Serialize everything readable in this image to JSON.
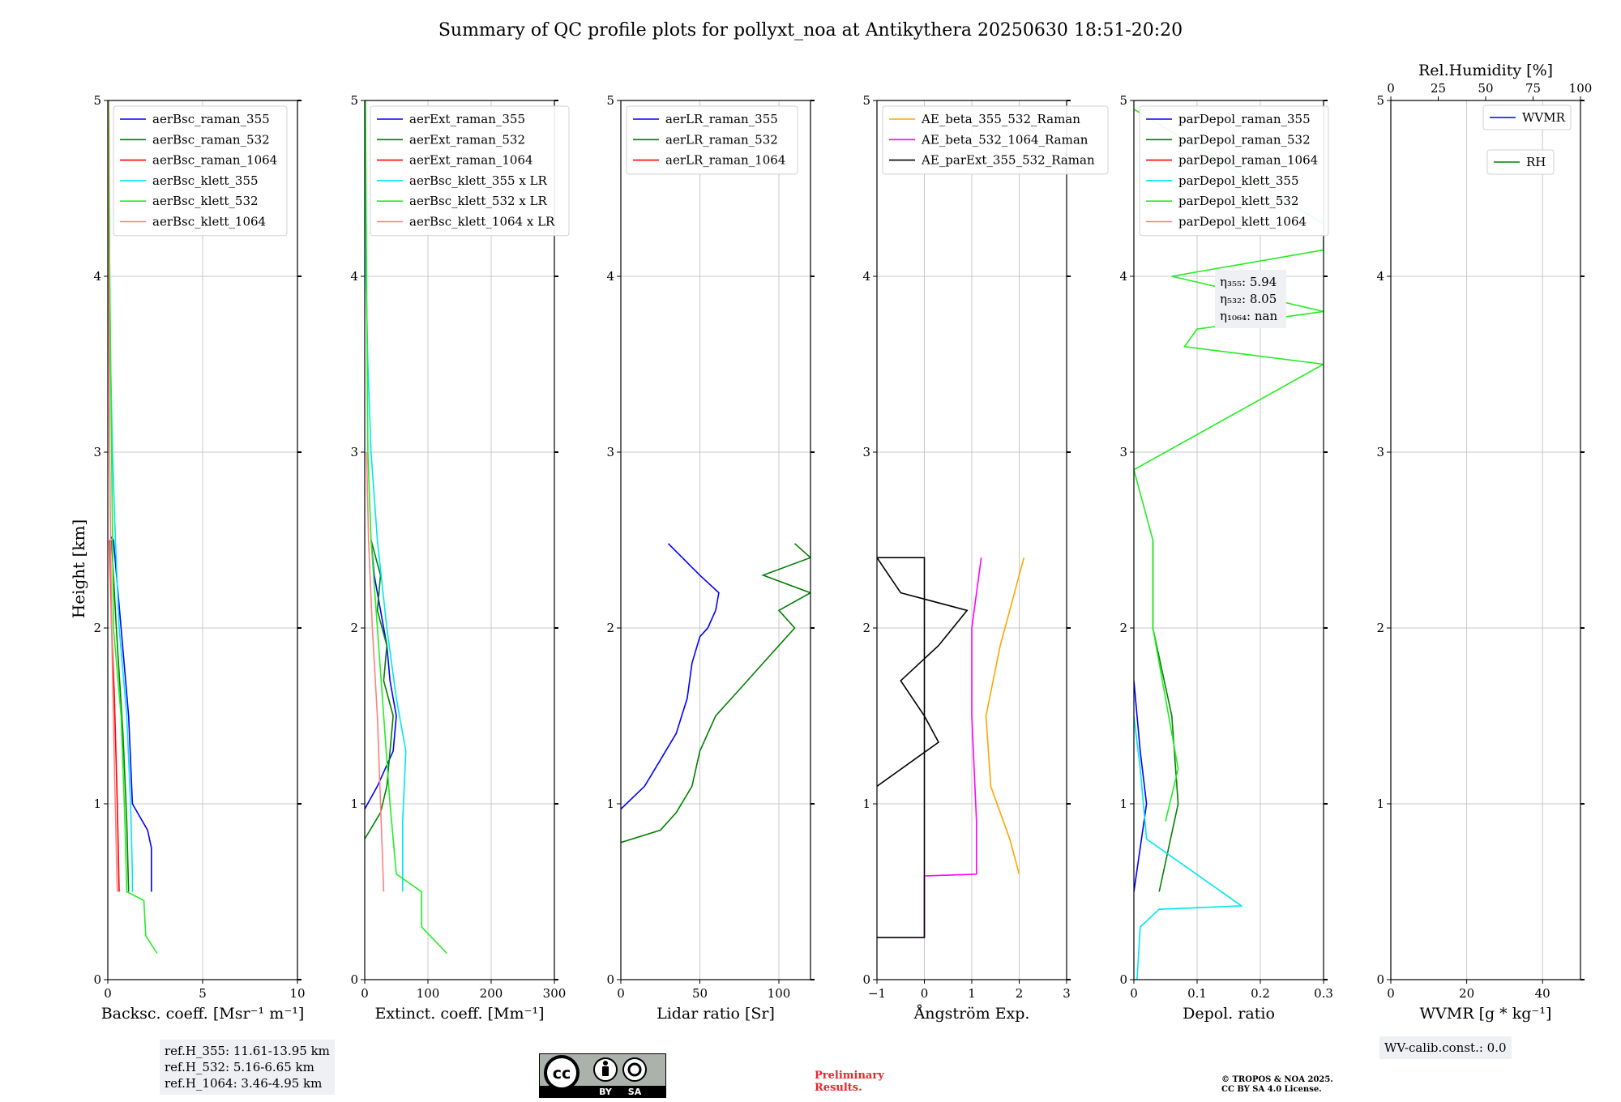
{
  "figure": {
    "title": "Summary of QC profile plots for pollyxt_noa at Antikythera 20250630 18:51-20:20",
    "ylabel": "Height [km]",
    "refh": [
      "ref.H_355: 11.61-13.95 km",
      "ref.H_532: 5.16-6.65 km",
      "ref.H_1064: 3.46-4.95 km"
    ],
    "wv_calib": "WV-calib.const.: 0.0",
    "preliminary": [
      "Preliminary",
      "Results."
    ],
    "copyright": [
      "© TROPOS & NOA 2025.",
      "CC BY SA 4.0 License."
    ],
    "license_badge": {
      "cc": "cc",
      "by": "BY",
      "sa": "SA"
    }
  },
  "chart_data": [
    {
      "type": "line",
      "xlabel": "Backsc. coeff. [Msr⁻¹ m⁻¹]",
      "xlim": [
        0,
        10
      ],
      "xticks": [
        0,
        5,
        10
      ],
      "ylim": [
        0,
        5
      ],
      "yticks": [
        0,
        1,
        2,
        3,
        4,
        5
      ],
      "grid": true,
      "legend_position": "upper-left",
      "series": [
        {
          "name": "aerBsc_raman_355",
          "color": "#0000ff",
          "points": [
            [
              2.3,
              0.5
            ],
            [
              2.3,
              0.75
            ],
            [
              2.1,
              0.85
            ],
            [
              1.3,
              1.0
            ],
            [
              1.1,
              1.5
            ],
            [
              0.7,
              2.0
            ],
            [
              0.3,
              2.5
            ],
            [
              0.15,
              2.52
            ]
          ]
        },
        {
          "name": "aerBsc_raman_532",
          "color": "#008000",
          "points": [
            [
              1.1,
              0.5
            ],
            [
              1.0,
              0.9
            ],
            [
              0.8,
              1.4
            ],
            [
              0.45,
              2.0
            ],
            [
              0.2,
              2.5
            ]
          ]
        },
        {
          "name": "aerBsc_raman_1064",
          "color": "#ff0000",
          "points": [
            [
              0.6,
              0.5
            ],
            [
              0.5,
              1.0
            ],
            [
              0.35,
              1.6
            ],
            [
              0.2,
              2.0
            ],
            [
              0.1,
              2.5
            ]
          ]
        },
        {
          "name": "aerBsc_klett_355",
          "color": "#00e5ee",
          "points": [
            [
              1.3,
              0.5
            ],
            [
              1.3,
              0.6
            ],
            [
              1.2,
              1.0
            ],
            [
              1.0,
              1.5
            ],
            [
              0.6,
              2.0
            ],
            [
              0.4,
              2.5
            ],
            [
              0.25,
              3.0
            ],
            [
              0.15,
              3.5
            ],
            [
              0.1,
              4.0
            ],
            [
              0.05,
              5.0
            ]
          ]
        },
        {
          "name": "aerBsc_klett_532",
          "color": "#22ee22",
          "points": [
            [
              2.6,
              0.15
            ],
            [
              2.0,
              0.25
            ],
            [
              1.9,
              0.45
            ],
            [
              1.0,
              0.5
            ],
            [
              0.9,
              0.9
            ],
            [
              0.7,
              1.5
            ],
            [
              0.3,
              2.0
            ],
            [
              0.2,
              3.0
            ],
            [
              0.1,
              4.0
            ],
            [
              0.05,
              5.0
            ]
          ]
        },
        {
          "name": "aerBsc_klett_1064",
          "color": "#ff8080",
          "points": [
            [
              0.5,
              0.5
            ],
            [
              0.35,
              1.2
            ],
            [
              0.2,
              2.0
            ],
            [
              0.1,
              3.0
            ],
            [
              0.05,
              4.0
            ],
            [
              0.03,
              5.0
            ]
          ]
        }
      ]
    },
    {
      "type": "line",
      "xlabel": "Extinct. coeff. [Mm⁻¹]",
      "xlim": [
        0,
        300
      ],
      "xticks": [
        0,
        100,
        200,
        300
      ],
      "ylim": [
        0,
        5
      ],
      "yticks": [
        0,
        1,
        2,
        3,
        4,
        5
      ],
      "grid": true,
      "legend_position": "upper-left",
      "series": [
        {
          "name": "aerExt_raman_355",
          "color": "#0000ff",
          "points": [
            [
              0,
              0.97
            ],
            [
              20,
              1.1
            ],
            [
              45,
              1.3
            ],
            [
              50,
              1.5
            ],
            [
              40,
              1.7
            ],
            [
              35,
              1.9
            ],
            [
              25,
              2.1
            ],
            [
              15,
              2.3
            ],
            [
              10,
              2.5
            ]
          ]
        },
        {
          "name": "aerExt_raman_532",
          "color": "#008000",
          "points": [
            [
              0,
              0.8
            ],
            [
              25,
              0.95
            ],
            [
              35,
              1.1
            ],
            [
              40,
              1.3
            ],
            [
              45,
              1.5
            ],
            [
              30,
              1.7
            ],
            [
              35,
              1.9
            ],
            [
              20,
              2.1
            ],
            [
              25,
              2.3
            ],
            [
              10,
              2.5
            ]
          ]
        },
        {
          "name": "aerExt_raman_1064",
          "color": "#ff0000",
          "points": []
        },
        {
          "name": "aerBsc_klett_355 x LR",
          "color": "#00e5ee",
          "points": [
            [
              60,
              0.5
            ],
            [
              60,
              0.9
            ],
            [
              65,
              1.3
            ],
            [
              50,
              1.6
            ],
            [
              35,
              2.0
            ],
            [
              20,
              2.5
            ],
            [
              10,
              3.0
            ],
            [
              5,
              3.5
            ],
            [
              2,
              4.0
            ],
            [
              1,
              5.0
            ]
          ]
        },
        {
          "name": "aerBsc_klett_532 x LR",
          "color": "#22ee22",
          "points": [
            [
              130,
              0.15
            ],
            [
              90,
              0.3
            ],
            [
              90,
              0.5
            ],
            [
              50,
              0.6
            ],
            [
              40,
              1.0
            ],
            [
              30,
              1.5
            ],
            [
              20,
              2.0
            ],
            [
              10,
              2.5
            ],
            [
              5,
              3.0
            ],
            [
              3,
              4.0
            ],
            [
              1,
              5.0
            ]
          ]
        },
        {
          "name": "aerBsc_klett_1064 x LR",
          "color": "#ff8080",
          "points": [
            [
              30,
              0.5
            ],
            [
              25,
              1.0
            ],
            [
              20,
              1.5
            ],
            [
              12,
              2.0
            ],
            [
              6,
              2.5
            ],
            [
              3,
              3.0
            ]
          ]
        }
      ]
    },
    {
      "type": "line",
      "xlabel": "Lidar ratio [Sr]",
      "xlim": [
        0,
        120
      ],
      "xticks": [
        0,
        50,
        100
      ],
      "ylim": [
        0,
        5
      ],
      "yticks": [
        0,
        1,
        2,
        3,
        4,
        5
      ],
      "grid": true,
      "legend_position": "upper-left",
      "series": [
        {
          "name": "aerLR_raman_355",
          "color": "#0000ff",
          "points": [
            [
              0,
              0.97
            ],
            [
              15,
              1.1
            ],
            [
              25,
              1.25
            ],
            [
              35,
              1.4
            ],
            [
              42,
              1.6
            ],
            [
              45,
              1.8
            ],
            [
              50,
              1.95
            ],
            [
              55,
              2.0
            ],
            [
              60,
              2.1
            ],
            [
              62,
              2.2
            ],
            [
              50,
              2.3
            ],
            [
              30,
              2.48
            ]
          ]
        },
        {
          "name": "aerLR_raman_532",
          "color": "#008000",
          "points": [
            [
              0,
              0.78
            ],
            [
              25,
              0.85
            ],
            [
              35,
              0.95
            ],
            [
              45,
              1.1
            ],
            [
              50,
              1.3
            ],
            [
              60,
              1.5
            ],
            [
              75,
              1.65
            ],
            [
              90,
              1.8
            ],
            [
              100,
              1.9
            ],
            [
              110,
              2.0
            ],
            [
              100,
              2.1
            ],
            [
              120,
              2.2
            ],
            [
              90,
              2.3
            ],
            [
              120,
              2.4
            ],
            [
              110,
              2.48
            ]
          ]
        },
        {
          "name": "aerLR_raman_1064",
          "color": "#ff0000",
          "points": []
        }
      ]
    },
    {
      "type": "line",
      "xlabel": "Ångström Exp.",
      "xlim": [
        -1,
        3
      ],
      "xticks": [
        -1,
        0,
        1,
        2,
        3
      ],
      "ylim": [
        0,
        5
      ],
      "yticks": [
        0,
        1,
        2,
        3,
        4,
        5
      ],
      "grid": true,
      "legend_position": "upper-left",
      "series": [
        {
          "name": "AE_beta_355_532_Raman",
          "color": "#ffa500",
          "points": [
            [
              2.0,
              0.6
            ],
            [
              1.8,
              0.8
            ],
            [
              1.4,
              1.1
            ],
            [
              1.3,
              1.5
            ],
            [
              1.6,
              1.9
            ],
            [
              1.8,
              2.1
            ],
            [
              2.1,
              2.4
            ]
          ]
        },
        {
          "name": "AE_beta_532_1064_Raman",
          "color": "#ff00ff",
          "points": [
            [
              0,
              0.24
            ],
            [
              0,
              0.59
            ],
            [
              1.1,
              0.6
            ],
            [
              1.1,
              0.9
            ],
            [
              1.0,
              1.5
            ],
            [
              1.0,
              2.0
            ],
            [
              1.2,
              2.4
            ]
          ]
        },
        {
          "name": "AE_parExt_355_532_Raman",
          "color": "#000000",
          "points": [
            [
              -1,
              0.24
            ],
            [
              0,
              0.24
            ],
            [
              0,
              2.4
            ],
            [
              -1,
              2.4
            ],
            [
              -0.5,
              2.2
            ],
            [
              0.9,
              2.1
            ],
            [
              0.3,
              1.9
            ],
            [
              -0.5,
              1.7
            ],
            [
              0,
              1.5
            ],
            [
              0.3,
              1.35
            ],
            [
              -1,
              1.1
            ]
          ]
        }
      ]
    },
    {
      "type": "line",
      "xlabel": "Depol. ratio",
      "xlim": [
        0,
        0.3
      ],
      "xticks": [
        0.0,
        0.1,
        0.2,
        0.3
      ],
      "ylim": [
        0,
        5
      ],
      "yticks": [
        0,
        1,
        2,
        3,
        4,
        5
      ],
      "grid": true,
      "legend_position": "upper-left",
      "annotations": [
        "η₃₅₅: 5.94",
        "η₅₃₂: 8.05",
        "η₁₀₆₄: nan"
      ],
      "series": [
        {
          "name": "parDepol_raman_355",
          "color": "#0000ff",
          "points": [
            [
              0.0,
              0.5
            ],
            [
              0.02,
              1.0
            ],
            [
              0.01,
              1.3
            ],
            [
              0.0,
              1.7
            ]
          ]
        },
        {
          "name": "parDepol_raman_532",
          "color": "#008000",
          "points": [
            [
              0.04,
              0.5
            ],
            [
              0.07,
              1.0
            ],
            [
              0.06,
              1.5
            ],
            [
              0.03,
              2.0
            ],
            [
              0.03,
              2.5
            ]
          ]
        },
        {
          "name": "parDepol_raman_1064",
          "color": "#ff0000",
          "points": []
        },
        {
          "name": "parDepol_klett_355",
          "color": "#00e5ee",
          "points": [
            [
              0.005,
              0.0
            ],
            [
              0.01,
              0.3
            ],
            [
              0.04,
              0.4
            ],
            [
              0.17,
              0.42
            ],
            [
              0.02,
              0.8
            ],
            [
              0.01,
              1.2
            ],
            [
              0.0,
              1.5
            ]
          ]
        },
        {
          "name": "parDepol_klett_532",
          "color": "#22ee22",
          "points": [
            [
              0.05,
              0.9
            ],
            [
              0.07,
              1.2
            ],
            [
              0.05,
              1.6
            ],
            [
              0.03,
              2.0
            ],
            [
              0.03,
              2.5
            ],
            [
              0.0,
              2.9
            ],
            [
              0.3,
              3.5
            ],
            [
              0.08,
              3.6
            ],
            [
              0.1,
              3.7
            ],
            [
              0.3,
              3.8
            ],
            [
              0.06,
              4.0
            ],
            [
              0.3,
              4.15
            ],
            [
              0.3,
              4.3
            ],
            [
              0.0,
              4.95
            ]
          ]
        },
        {
          "name": "parDepol_klett_1064",
          "color": "#ff8080",
          "points": []
        }
      ]
    },
    {
      "type": "line",
      "xlabel": "WVMR [g * kg⁻¹]",
      "xlim": [
        0,
        50
      ],
      "xticks": [
        0,
        20,
        40
      ],
      "secondary_xlabel": "Rel.Humidity [%]",
      "secondary_xlim": [
        0,
        100
      ],
      "secondary_xticks": [
        0,
        25,
        50,
        75,
        100
      ],
      "ylim": [
        0,
        5
      ],
      "yticks": [
        0,
        1,
        2,
        3,
        4,
        5
      ],
      "grid": true,
      "legend_position": "upper-right",
      "series": [
        {
          "name": "WVMR",
          "color": "#0000ff",
          "points": []
        },
        {
          "name": "RH",
          "color": "#008000",
          "points": []
        }
      ]
    }
  ]
}
